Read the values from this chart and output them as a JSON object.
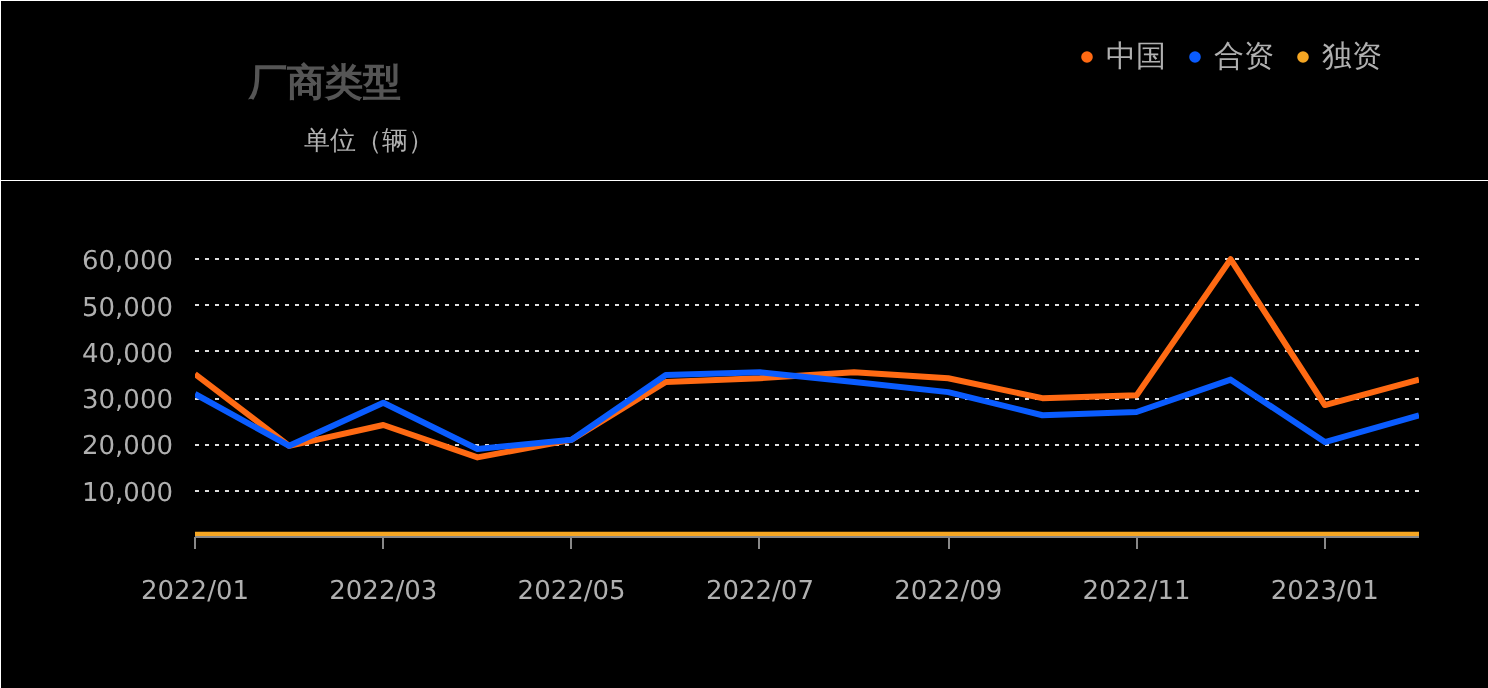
{
  "chart_data": {
    "type": "line",
    "title": "厂商类型",
    "ylabel": "单位（辆）",
    "categories": [
      "2022/01",
      null,
      "2022/03",
      null,
      "2022/05",
      null,
      "2022/07",
      null,
      "2022/09",
      null,
      "2022/11",
      null,
      "2023/01",
      null
    ],
    "series": [
      {
        "name": "中国",
        "color": "#ff6a13",
        "values": [
          35200,
          19700,
          24200,
          17200,
          21000,
          33500,
          34300,
          35600,
          34300,
          30000,
          30600,
          60000,
          28500,
          34000
        ]
      },
      {
        "name": "合资",
        "color": "#0a5cff",
        "values": [
          30900,
          19700,
          29000,
          19000,
          21000,
          35000,
          35600,
          33500,
          31300,
          26300,
          27000,
          34000,
          20500,
          26300
        ]
      },
      {
        "name": "独资",
        "color": "#f5a623",
        "values": [
          500,
          500,
          500,
          500,
          500,
          500,
          500,
          500,
          500,
          500,
          500,
          500,
          500,
          500
        ]
      }
    ],
    "ylim": [
      0,
      70000
    ],
    "yticks": [
      {
        "value": 0,
        "label": null
      },
      {
        "value": 10000,
        "label": "10,000"
      },
      {
        "value": 20000,
        "label": "20,000"
      },
      {
        "value": 30000,
        "label": "30,000"
      },
      {
        "value": 40000,
        "label": "40,000"
      },
      {
        "value": 50000,
        "label": "50,000"
      },
      {
        "value": 60000,
        "label": "60,000"
      },
      {
        "value": 70000,
        "label": null
      }
    ],
    "grid": "y",
    "legend": "top right",
    "marker": "none",
    "line_style": "solid"
  }
}
